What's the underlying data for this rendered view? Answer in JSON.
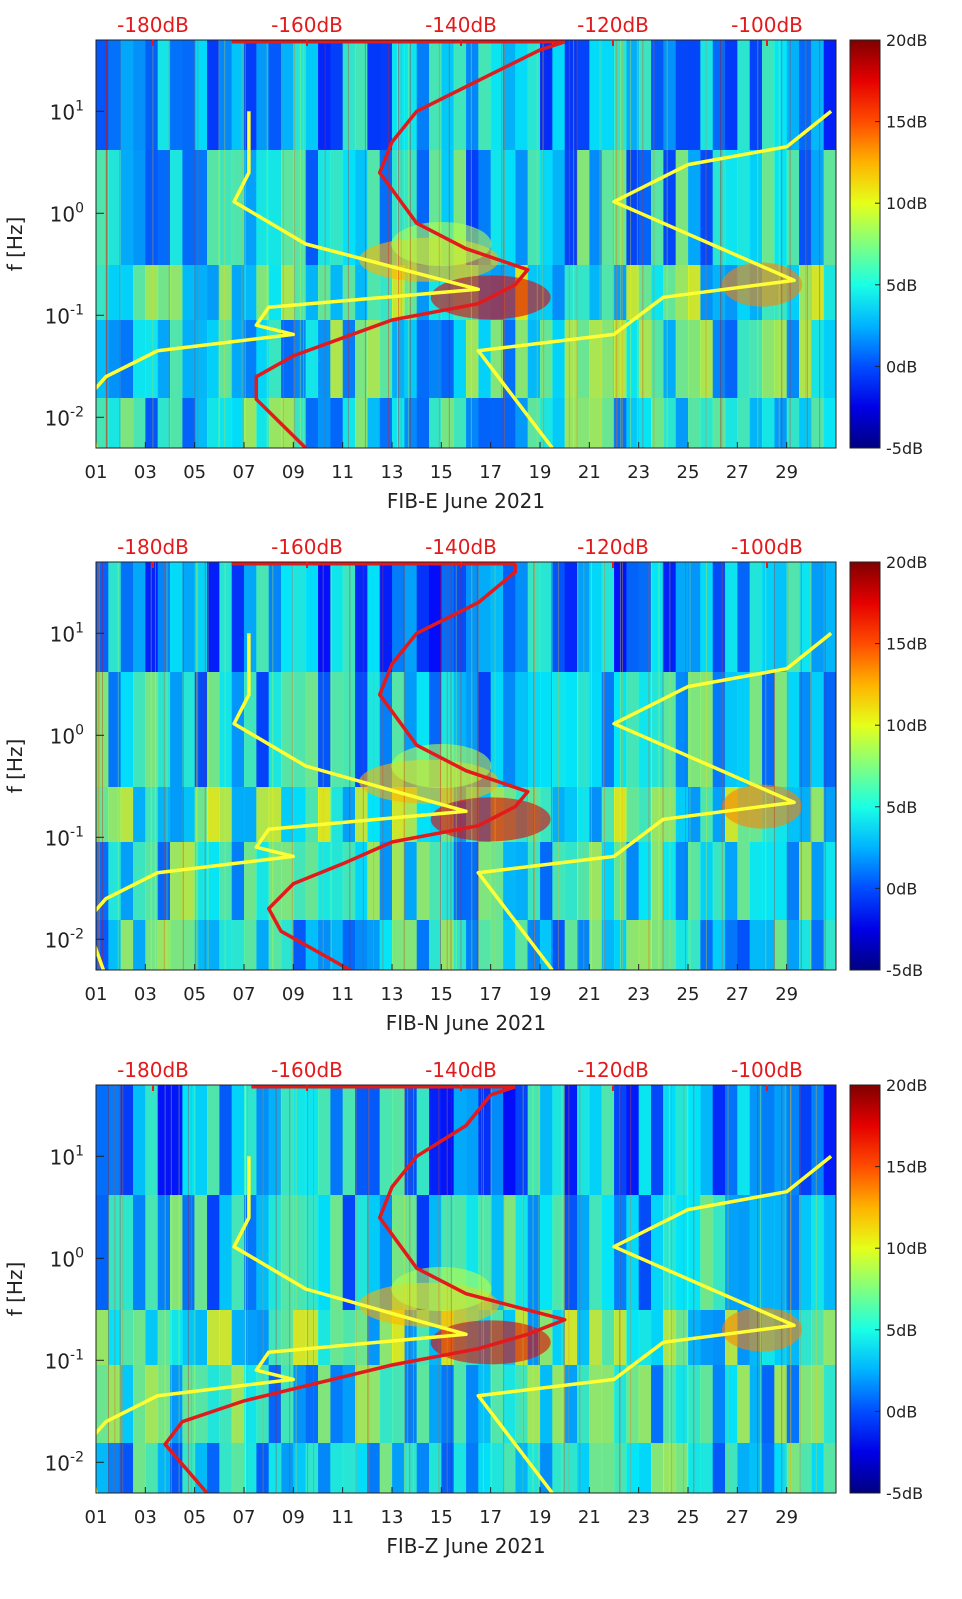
{
  "chart_data": [
    {
      "type": "heatmap",
      "xlabel": "FIB-E June 2021",
      "ylabel": "f [Hz]",
      "x_tick_labels": [
        "01",
        "03",
        "05",
        "07",
        "09",
        "11",
        "13",
        "15",
        "17",
        "19",
        "21",
        "23",
        "25",
        "27",
        "29"
      ],
      "x_range_days": [
        1,
        31
      ],
      "y_scale": "log",
      "y_range_hz": [
        0.005,
        50
      ],
      "y_tick_labels": [
        "10^1",
        "10^0",
        "10^-1",
        "10^-2"
      ],
      "top_axis_labels": [
        "-180dB",
        "-160dB",
        "-140dB",
        "-120dB",
        "-100dB"
      ],
      "top_axis_color": "#e31a1c",
      "colorbar": {
        "labels": [
          "20dB",
          "15dB",
          "10dB",
          "5dB",
          "0dB",
          "-5dB"
        ],
        "range_db": [
          -5,
          20
        ],
        "colormap": "jet"
      },
      "curves": [
        {
          "color": "#ffff33",
          "points": [
            [
              1.0,
              0.005
            ],
            [
              0.6,
              0.015
            ],
            [
              1.4,
              0.025
            ],
            [
              3.5,
              0.045
            ],
            [
              9.0,
              0.065
            ],
            [
              7.5,
              0.08
            ],
            [
              8.0,
              0.12
            ],
            [
              16.5,
              0.18
            ],
            [
              9.5,
              0.5
            ],
            [
              6.6,
              1.3
            ],
            [
              7.2,
              2.5
            ],
            [
              7.2,
              10
            ]
          ]
        },
        {
          "color": "#ffff33",
          "points": [
            [
              19.5,
              0.005
            ],
            [
              16.5,
              0.045
            ],
            [
              22.0,
              0.065
            ],
            [
              24.0,
              0.15
            ],
            [
              29.3,
              0.22
            ],
            [
              22.0,
              1.3
            ],
            [
              25.0,
              3.0
            ],
            [
              29.0,
              4.5
            ],
            [
              30.8,
              10
            ]
          ]
        },
        {
          "color": "#e31a1c",
          "points": [
            [
              9.5,
              0.005
            ],
            [
              7.5,
              0.015
            ],
            [
              7.5,
              0.025
            ],
            [
              9.0,
              0.04
            ],
            [
              11.0,
              0.06
            ],
            [
              13.0,
              0.09
            ],
            [
              16.5,
              0.13
            ],
            [
              18.0,
              0.2
            ],
            [
              18.5,
              0.28
            ],
            [
              16.0,
              0.45
            ],
            [
              14.0,
              0.8
            ],
            [
              12.5,
              2.5
            ],
            [
              13.0,
              5
            ],
            [
              14.0,
              10
            ],
            [
              16.5,
              20
            ],
            [
              19.0,
              40
            ],
            [
              20.0,
              48
            ]
          ]
        }
      ],
      "top_line": {
        "color": "#e31a1c",
        "x_days": [
          6.5,
          20.0
        ],
        "y_hz": 48
      }
    },
    {
      "type": "heatmap",
      "xlabel": "FIB-N June 2021",
      "ylabel": "f [Hz]",
      "x_tick_labels": [
        "01",
        "03",
        "05",
        "07",
        "09",
        "11",
        "13",
        "15",
        "17",
        "19",
        "21",
        "23",
        "25",
        "27",
        "29"
      ],
      "x_range_days": [
        1,
        31
      ],
      "y_scale": "log",
      "y_range_hz": [
        0.005,
        50
      ],
      "y_tick_labels": [
        "10^1",
        "10^0",
        "10^-1",
        "10^-2"
      ],
      "top_axis_labels": [
        "-180dB",
        "-160dB",
        "-140dB",
        "-120dB",
        "-100dB"
      ],
      "top_axis_color": "#e31a1c",
      "colorbar": {
        "labels": [
          "20dB",
          "15dB",
          "10dB",
          "5dB",
          "0dB",
          "-5dB"
        ],
        "range_db": [
          -5,
          20
        ],
        "colormap": "jet"
      },
      "curves": [
        {
          "color": "#ffff33",
          "points": [
            [
              1.3,
              0.005
            ],
            [
              0.6,
              0.015
            ],
            [
              1.4,
              0.025
            ],
            [
              3.5,
              0.045
            ],
            [
              9.0,
              0.065
            ],
            [
              7.5,
              0.08
            ],
            [
              8.0,
              0.12
            ],
            [
              16.0,
              0.18
            ],
            [
              9.5,
              0.5
            ],
            [
              6.6,
              1.3
            ],
            [
              7.2,
              2.5
            ],
            [
              7.2,
              10
            ]
          ]
        },
        {
          "color": "#ffff33",
          "points": [
            [
              19.5,
              0.005
            ],
            [
              16.5,
              0.045
            ],
            [
              22.0,
              0.065
            ],
            [
              24.0,
              0.15
            ],
            [
              29.3,
              0.22
            ],
            [
              22.0,
              1.3
            ],
            [
              25.0,
              3.0
            ],
            [
              29.0,
              4.5
            ],
            [
              30.8,
              10
            ]
          ]
        },
        {
          "color": "#e31a1c",
          "points": [
            [
              11.3,
              0.005
            ],
            [
              8.5,
              0.012
            ],
            [
              8.0,
              0.02
            ],
            [
              9.0,
              0.035
            ],
            [
              11.0,
              0.055
            ],
            [
              13.0,
              0.09
            ],
            [
              16.5,
              0.13
            ],
            [
              18.0,
              0.2
            ],
            [
              18.5,
              0.28
            ],
            [
              16.0,
              0.45
            ],
            [
              14.0,
              0.8
            ],
            [
              12.5,
              2.5
            ],
            [
              13.0,
              5
            ],
            [
              14.0,
              10
            ],
            [
              16.5,
              20
            ],
            [
              18.0,
              40
            ],
            [
              18.0,
              48
            ]
          ]
        }
      ],
      "top_line": {
        "color": "#e31a1c",
        "x_days": [
          6.5,
          18.0
        ],
        "y_hz": 48
      }
    },
    {
      "type": "heatmap",
      "xlabel": "FIB-Z June 2021",
      "ylabel": "f [Hz]",
      "x_tick_labels": [
        "01",
        "03",
        "05",
        "07",
        "09",
        "11",
        "13",
        "15",
        "17",
        "19",
        "21",
        "23",
        "25",
        "27",
        "29"
      ],
      "x_range_days": [
        1,
        31
      ],
      "y_scale": "log",
      "y_range_hz": [
        0.005,
        50
      ],
      "y_tick_labels": [
        "10^1",
        "10^0",
        "10^-1",
        "10^-2"
      ],
      "top_axis_labels": [
        "-180dB",
        "-160dB",
        "-140dB",
        "-120dB",
        "-100dB"
      ],
      "top_axis_color": "#e31a1c",
      "colorbar": {
        "labels": [
          "20dB",
          "15dB",
          "10dB",
          "5dB",
          "0dB",
          "-5dB"
        ],
        "range_db": [
          -5,
          20
        ],
        "colormap": "jet"
      },
      "curves": [
        {
          "color": "#ffff33",
          "points": [
            [
              1.0,
              0.005
            ],
            [
              0.6,
              0.015
            ],
            [
              1.4,
              0.025
            ],
            [
              3.5,
              0.045
            ],
            [
              9.0,
              0.065
            ],
            [
              7.5,
              0.08
            ],
            [
              8.0,
              0.12
            ],
            [
              16.0,
              0.18
            ],
            [
              9.5,
              0.5
            ],
            [
              6.6,
              1.3
            ],
            [
              7.2,
              2.5
            ],
            [
              7.2,
              10
            ]
          ]
        },
        {
          "color": "#ffff33",
          "points": [
            [
              19.5,
              0.005
            ],
            [
              16.5,
              0.045
            ],
            [
              22.0,
              0.065
            ],
            [
              24.0,
              0.15
            ],
            [
              29.3,
              0.22
            ],
            [
              22.0,
              1.3
            ],
            [
              25.0,
              3.0
            ],
            [
              29.0,
              4.5
            ],
            [
              30.8,
              10
            ]
          ]
        },
        {
          "color": "#e31a1c",
          "points": [
            [
              5.5,
              0.005
            ],
            [
              3.8,
              0.015
            ],
            [
              4.5,
              0.025
            ],
            [
              7.0,
              0.04
            ],
            [
              10.0,
              0.06
            ],
            [
              13.0,
              0.09
            ],
            [
              16.5,
              0.13
            ],
            [
              18.5,
              0.18
            ],
            [
              20.0,
              0.25
            ],
            [
              16.0,
              0.45
            ],
            [
              14.0,
              0.8
            ],
            [
              12.5,
              2.5
            ],
            [
              13.0,
              5
            ],
            [
              14.0,
              10
            ],
            [
              16.0,
              20
            ],
            [
              17.0,
              40
            ],
            [
              18.0,
              48
            ]
          ]
        }
      ],
      "top_line": {
        "color": "#e31a1c",
        "x_days": [
          7.3,
          18.0
        ],
        "y_hz": 48
      }
    }
  ]
}
